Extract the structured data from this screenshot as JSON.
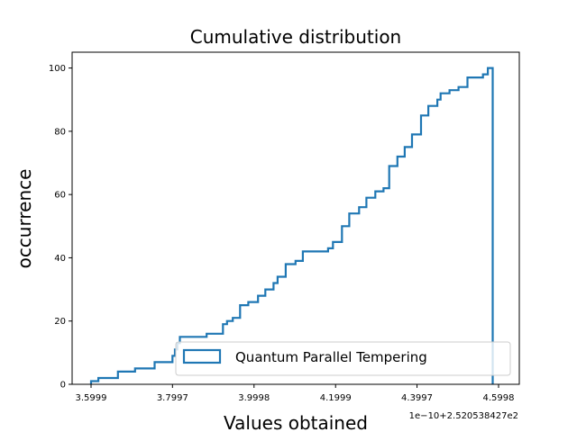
{
  "chart_data": {
    "type": "line",
    "title": "Cumulative distribution",
    "xlabel": "Values obtained",
    "ylabel": "occurrence",
    "x_offset_label": "1e−10+2.520538427e2",
    "xlim": [
      3.5999,
      4.5998
    ],
    "ylim": [
      0,
      105
    ],
    "x_ticks": [
      {
        "value": 3.5999,
        "label": "3.5999"
      },
      {
        "value": 3.7997,
        "label": "3.7997"
      },
      {
        "value": 3.9998,
        "label": "3.9998"
      },
      {
        "value": 4.1999,
        "label": "4.1999"
      },
      {
        "value": 4.3997,
        "label": "4.3997"
      },
      {
        "value": 4.5998,
        "label": "4.5998"
      }
    ],
    "y_ticks": [
      {
        "value": 0,
        "label": "0"
      },
      {
        "value": 20,
        "label": "20"
      },
      {
        "value": 40,
        "label": "40"
      },
      {
        "value": 60,
        "label": "60"
      },
      {
        "value": 80,
        "label": "80"
      },
      {
        "value": 100,
        "label": "100"
      }
    ],
    "grid": false,
    "legend_position": "lower-right",
    "series": [
      {
        "name": "Quantum Parallel Tempering",
        "color": "#1f77b4",
        "steps": [
          [
            3.5999,
            1
          ],
          [
            3.6179,
            2
          ],
          [
            3.6659,
            4
          ],
          [
            3.7079,
            5
          ],
          [
            3.7558,
            7
          ],
          [
            3.7997,
            9
          ],
          [
            3.8057,
            11
          ],
          [
            3.8117,
            13
          ],
          [
            3.8177,
            15
          ],
          [
            3.8836,
            16
          ],
          [
            3.9236,
            19
          ],
          [
            3.9336,
            20
          ],
          [
            3.9476,
            21
          ],
          [
            3.9656,
            25
          ],
          [
            3.9856,
            26
          ],
          [
            4.0096,
            28
          ],
          [
            4.0276,
            30
          ],
          [
            4.0476,
            32
          ],
          [
            4.0576,
            34
          ],
          [
            4.0776,
            38
          ],
          [
            4.1016,
            39
          ],
          [
            4.1196,
            42
          ],
          [
            4.1815,
            43
          ],
          [
            4.1935,
            45
          ],
          [
            4.2155,
            50
          ],
          [
            4.2335,
            54
          ],
          [
            4.2575,
            56
          ],
          [
            4.2755,
            59
          ],
          [
            4.2975,
            61
          ],
          [
            4.3175,
            62
          ],
          [
            4.3315,
            69
          ],
          [
            4.3515,
            72
          ],
          [
            4.3695,
            75
          ],
          [
            4.3875,
            79
          ],
          [
            4.4095,
            85
          ],
          [
            4.4275,
            88
          ],
          [
            4.4495,
            90
          ],
          [
            4.4575,
            92
          ],
          [
            4.4795,
            93
          ],
          [
            4.5015,
            94
          ],
          [
            4.5235,
            97
          ],
          [
            4.5615,
            98
          ],
          [
            4.5735,
            100
          ]
        ],
        "end_x": 4.5855
      }
    ]
  }
}
